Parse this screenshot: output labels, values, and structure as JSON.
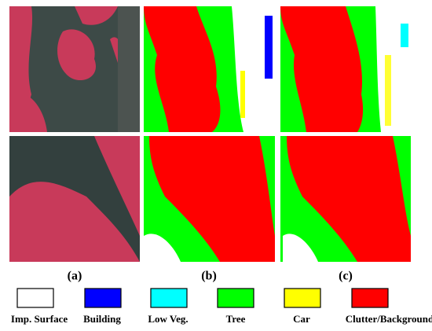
{
  "figure": {
    "panel_labels": [
      "(a)",
      "(b)",
      "(c)"
    ],
    "legend": [
      {
        "name": "Imp. Surface",
        "color": "#ffffff"
      },
      {
        "name": "Building",
        "color": "#0000ff"
      },
      {
        "name": "Low Veg.",
        "color": "#00ffff"
      },
      {
        "name": "Tree",
        "color": "#00ff00"
      },
      {
        "name": "Car",
        "color": "#ffff00"
      },
      {
        "name": "Clutter/Background",
        "color": "#ff0000"
      }
    ]
  }
}
